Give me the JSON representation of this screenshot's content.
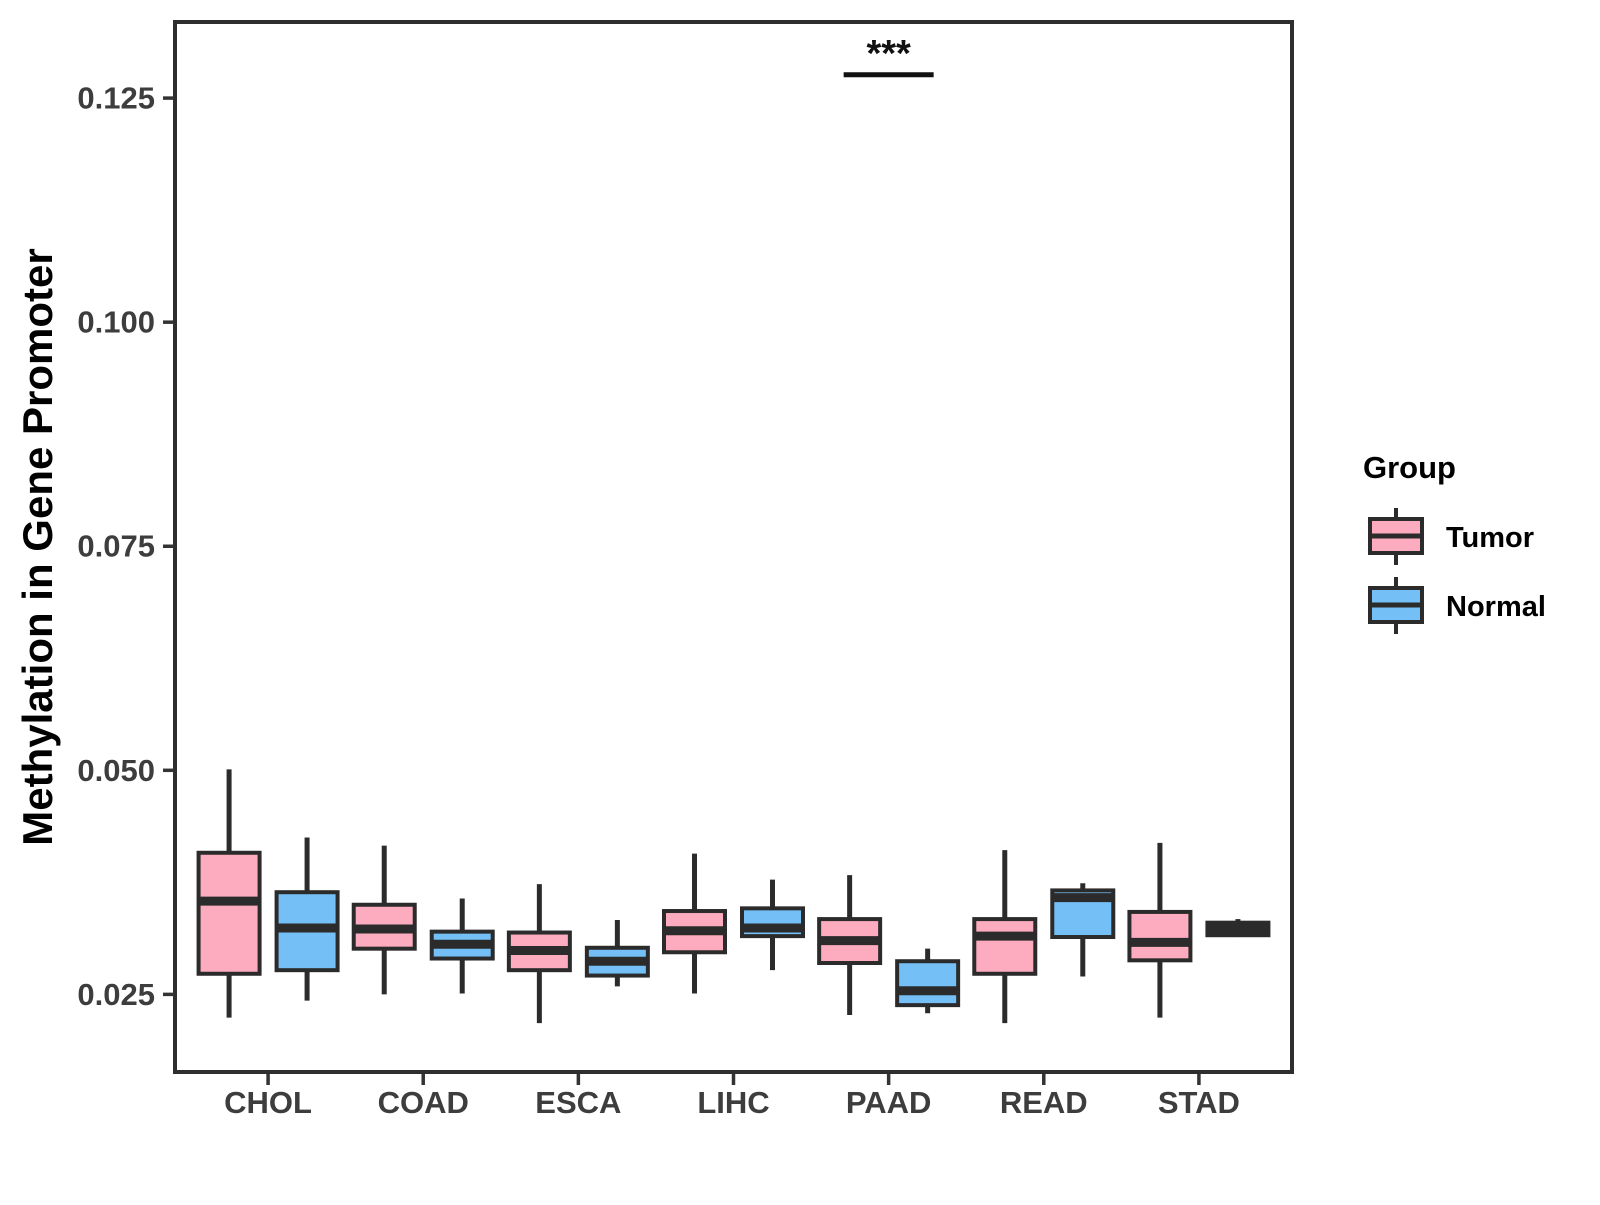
{
  "chart_data": {
    "type": "boxplot",
    "title": "",
    "xlabel": "",
    "ylabel": "Methylation in Gene Promoter",
    "categories": [
      "CHOL",
      "COAD",
      "ESCA",
      "LIHC",
      "PAAD",
      "READ",
      "STAD"
    ],
    "ylim": [
      0.01634,
      0.13349
    ],
    "yticks": [
      {
        "value": 0.025,
        "label": "0.025"
      },
      {
        "value": 0.05,
        "label": "0.050"
      },
      {
        "value": 0.075,
        "label": "0.075"
      },
      {
        "value": 0.1,
        "label": "0.100"
      },
      {
        "value": 0.125,
        "label": "0.125"
      }
    ],
    "grid": false,
    "legend_position": "right",
    "series": [
      {
        "name": "Tumor",
        "color": "#FCACBE",
        "boxes": [
          {
            "min": 0.0224,
            "q1": 0.0273,
            "median": 0.0354,
            "q3": 0.0408,
            "max": 0.0501
          },
          {
            "min": 0.025,
            "q1": 0.0301,
            "median": 0.0323,
            "q3": 0.035,
            "max": 0.0416
          },
          {
            "min": 0.0218,
            "q1": 0.0277,
            "median": 0.0299,
            "q3": 0.0319,
            "max": 0.0373
          },
          {
            "min": 0.0251,
            "q1": 0.0297,
            "median": 0.0321,
            "q3": 0.0343,
            "max": 0.0407
          },
          {
            "min": 0.0227,
            "q1": 0.0285,
            "median": 0.031,
            "q3": 0.0334,
            "max": 0.0383
          },
          {
            "min": 0.0218,
            "q1": 0.0273,
            "median": 0.0315,
            "q3": 0.0334,
            "max": 0.0411
          },
          {
            "min": 0.0224,
            "q1": 0.0288,
            "median": 0.0308,
            "q3": 0.0342,
            "max": 0.0419
          }
        ]
      },
      {
        "name": "Normal",
        "color": "#73BFF6",
        "boxes": [
          {
            "min": 0.0243,
            "q1": 0.0277,
            "median": 0.0324,
            "q3": 0.0364,
            "max": 0.0425
          },
          {
            "min": 0.0251,
            "q1": 0.029,
            "median": 0.0306,
            "q3": 0.032,
            "max": 0.0357
          },
          {
            "min": 0.0259,
            "q1": 0.0271,
            "median": 0.0287,
            "q3": 0.0302,
            "max": 0.0333
          },
          {
            "min": 0.0277,
            "q1": 0.0315,
            "median": 0.0324,
            "q3": 0.0346,
            "max": 0.0378
          },
          {
            "min": 0.0229,
            "q1": 0.0238,
            "median": 0.0254,
            "q3": 0.0287,
            "max": 0.0301
          },
          {
            "min": 0.027,
            "q1": 0.0314,
            "median": 0.0358,
            "q3": 0.0366,
            "max": 0.0374
          },
          {
            "min": 0.0314,
            "q1": 0.0316,
            "median": 0.0323,
            "q3": 0.033,
            "max": 0.0334
          }
        ]
      }
    ],
    "annotation": {
      "label": "***",
      "group": "PAAD",
      "line_y": 0.1276
    }
  },
  "legend": {
    "title": "Group",
    "items": [
      {
        "label": "Tumor",
        "color": "#FCACBE"
      },
      {
        "label": "Normal",
        "color": "#73BFF6"
      }
    ]
  },
  "styles": {
    "box_stroke": "#2B2B2B",
    "tick_text": "#3D3D3D",
    "title_text": "#000000",
    "background": "#FFFFFF"
  }
}
